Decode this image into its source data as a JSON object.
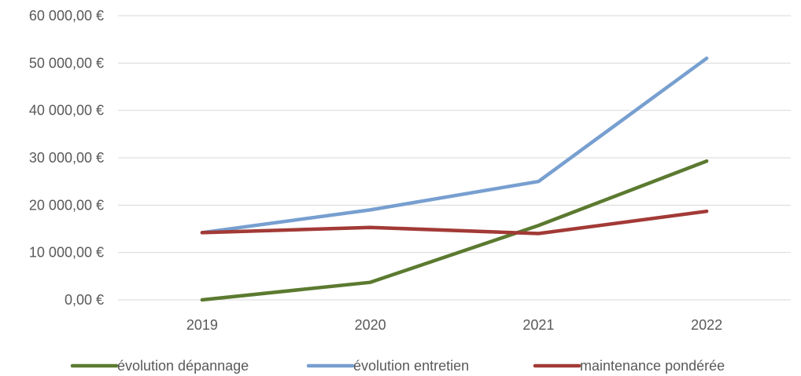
{
  "chart_data": {
    "type": "line",
    "categories": [
      "2019",
      "2020",
      "2021",
      "2022"
    ],
    "series": [
      {
        "name": "évolution dépannage",
        "color": "#5b7a30",
        "values": [
          0,
          3700,
          15700,
          29300
        ]
      },
      {
        "name": "évolution entretien",
        "color": "#779fd0",
        "values": [
          14200,
          19000,
          25000,
          51000
        ]
      },
      {
        "name": "maintenance pondérée",
        "color": "#a23a36",
        "values": [
          14200,
          15300,
          14000,
          18700
        ]
      }
    ],
    "ylim": [
      0,
      60000
    ],
    "yticks": [
      {
        "value": 0,
        "label": "0,00 €"
      },
      {
        "value": 10000,
        "label": "10 000,00 €"
      },
      {
        "value": 20000,
        "label": "20 000,00 €"
      },
      {
        "value": 30000,
        "label": "30 000,00 €"
      },
      {
        "value": 40000,
        "label": "40 000,00 €"
      },
      {
        "value": 50000,
        "label": "50 000,00 €"
      },
      {
        "value": 60000,
        "label": "60 000,00 €"
      }
    ],
    "grid": true,
    "legend_position": "bottom",
    "gridline_color": "#d9d9d9"
  }
}
